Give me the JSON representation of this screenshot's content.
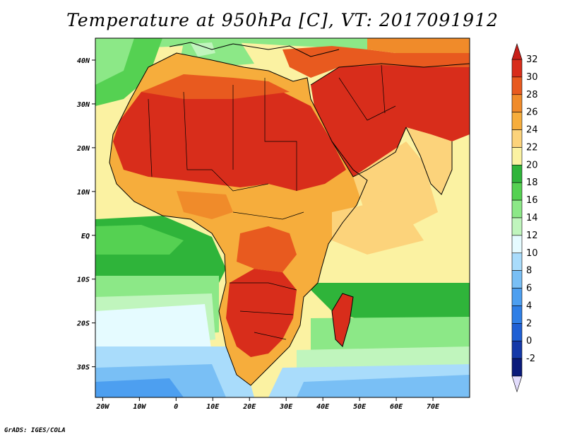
{
  "title": "Temperature at 950hPa [C], VT: 2017091912",
  "footer": "GrADS: IGES/COLA",
  "map": {
    "lon_range": [
      -22,
      80
    ],
    "lat_range": [
      -37,
      45
    ],
    "lat_ticks": [
      {
        "label": "40N",
        "value": 40
      },
      {
        "label": "30N",
        "value": 30
      },
      {
        "label": "20N",
        "value": 20
      },
      {
        "label": "10N",
        "value": 10
      },
      {
        "label": "EQ",
        "value": 0
      },
      {
        "label": "10S",
        "value": -10
      },
      {
        "label": "20S",
        "value": -20
      },
      {
        "label": "30S",
        "value": -30
      }
    ],
    "lon_ticks": [
      {
        "label": "20W",
        "value": -20
      },
      {
        "label": "10W",
        "value": -10
      },
      {
        "label": "0",
        "value": 0
      },
      {
        "label": "10E",
        "value": 10
      },
      {
        "label": "20E",
        "value": 20
      },
      {
        "label": "30E",
        "value": 30
      },
      {
        "label": "40E",
        "value": 40
      },
      {
        "label": "50E",
        "value": 50
      },
      {
        "label": "60E",
        "value": 60
      },
      {
        "label": "70E",
        "value": 70
      }
    ]
  },
  "colorbar": {
    "labels": [
      "32",
      "30",
      "28",
      "26",
      "24",
      "22",
      "20",
      "18",
      "16",
      "14",
      "12",
      "10",
      "8",
      "6",
      "4",
      "2",
      "0",
      "-2"
    ],
    "colors": [
      "#d82d1b",
      "#e85a1f",
      "#f08b2a",
      "#f6ad3c",
      "#fcd37b",
      "#fbf2a2",
      "#2fb43a",
      "#55d152",
      "#8ce887",
      "#c0f5bd",
      "#e5fbff",
      "#a9dcfb",
      "#79bff5",
      "#4d9ff0",
      "#2f7fe6",
      "#1e5fd4",
      "#1438a8",
      "#0a1a7a"
    ],
    "top_arrow_color": "#c8201a",
    "bottom_arrow_color": "#e2dcfc"
  }
}
